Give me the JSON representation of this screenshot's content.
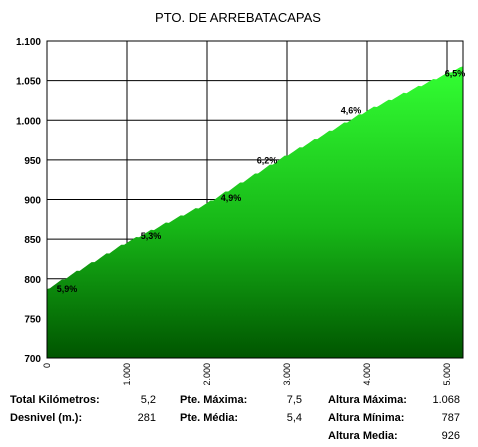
{
  "chart_data": {
    "type": "area",
    "title": "PTO. DE ARREBATACAPAS",
    "xlim": [
      0,
      5200
    ],
    "ylim": [
      700,
      1100
    ],
    "y_ticks": [
      {
        "value": 700,
        "label": "700"
      },
      {
        "value": 750,
        "label": "750"
      },
      {
        "value": 800,
        "label": "800"
      },
      {
        "value": 850,
        "label": "850"
      },
      {
        "value": 900,
        "label": "900"
      },
      {
        "value": 950,
        "label": "950"
      },
      {
        "value": 1000,
        "label": "1.000"
      },
      {
        "value": 1050,
        "label": "1.050"
      },
      {
        "value": 1100,
        "label": "1.100"
      }
    ],
    "x_ticks": [
      {
        "value": 0,
        "label": "0"
      },
      {
        "value": 1000,
        "label": "1.000"
      },
      {
        "value": 2000,
        "label": "2.000"
      },
      {
        "value": 3000,
        "label": "3.000"
      },
      {
        "value": 4000,
        "label": "4.000"
      },
      {
        "value": 5000,
        "label": "5.000"
      }
    ],
    "x": [
      0,
      1000,
      2000,
      3000,
      4000,
      5000,
      5200
    ],
    "y": [
      787,
      846,
      895,
      956,
      1012,
      1059,
      1068
    ],
    "grid": true,
    "gradient_labels": [
      {
        "x": 250,
        "y": 787,
        "label": "5,9%"
      },
      {
        "x": 1300,
        "y": 854,
        "label": "5,3%"
      },
      {
        "x": 2300,
        "y": 902,
        "label": "4,9%"
      },
      {
        "x": 2750,
        "y": 949,
        "label": "6,2%"
      },
      {
        "x": 3800,
        "y": 1012,
        "label": "4,6%"
      },
      {
        "x": 5100,
        "y": 1059,
        "label": "6,5%"
      }
    ]
  },
  "stats": {
    "total_km_label": "Total Kilómetros:",
    "total_km_value": "5,2",
    "desnivel_label": "Desnivel (m.):",
    "desnivel_value": "281",
    "pte_max_label": "Pte. Máxima:",
    "pte_max_value": "7,5",
    "pte_media_label": "Pte. Média:",
    "pte_media_value": "5,4",
    "alt_max_label": "Altura Máxima:",
    "alt_max_value": "1.068",
    "alt_min_label": "Altura Mínima:",
    "alt_min_value": "787",
    "alt_media_label": "Altura Media:",
    "alt_media_value": "926"
  },
  "colors": {
    "fill_top": "#33ff33",
    "fill_bottom": "#005500",
    "grid": "#000000"
  }
}
